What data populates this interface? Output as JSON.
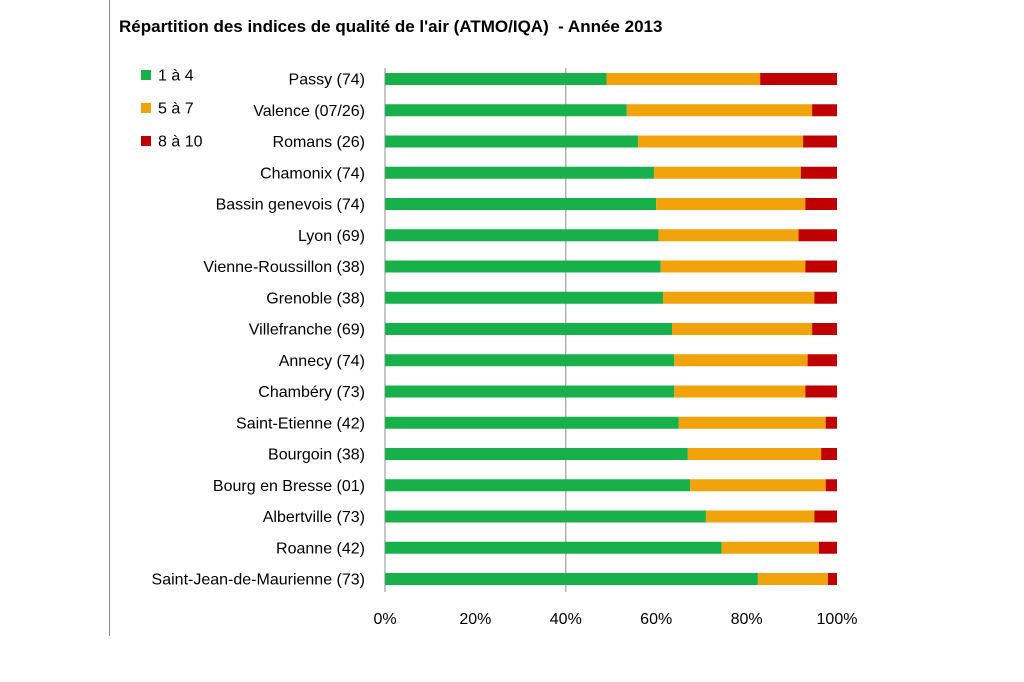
{
  "chart_data": {
    "type": "bar",
    "orientation": "horizontal",
    "stacked": "percent",
    "title": "Répartition des indices de qualité de l'air (ATMO/IQA)  - Année 2013",
    "categories": [
      "Passy (74)",
      "Valence (07/26)",
      "Romans (26)",
      "Chamonix (74)",
      "Bassin genevois (74)",
      "Lyon (69)",
      "Vienne-Roussillon (38)",
      "Grenoble (38)",
      "Villefranche (69)",
      "Annecy (74)",
      "Chambéry (73)",
      "Saint-Etienne (42)",
      "Bourgoin (38)",
      "Bourg en Bresse (01)",
      "Albertville (73)",
      "Roanne (42)",
      "Saint-Jean-de-Maurienne (73)"
    ],
    "series": [
      {
        "name": "1 à 4",
        "color": "#18b04b",
        "values": [
          49,
          53.5,
          56,
          59.5,
          60,
          60.5,
          61,
          61.5,
          63.5,
          64,
          64,
          65,
          67,
          67.5,
          71,
          74.5,
          82.5
        ]
      },
      {
        "name": "5 à 7",
        "color": "#f0a30a",
        "values": [
          34,
          41,
          36.5,
          32.5,
          33,
          31,
          32,
          33.5,
          31,
          29.5,
          29,
          32.5,
          29.5,
          30,
          24,
          21.5,
          15.5
        ]
      },
      {
        "name": "8 à 10",
        "color": "#c00000",
        "values": [
          17,
          5.5,
          7.5,
          8,
          7,
          8.5,
          7,
          5,
          5.5,
          6.5,
          7,
          2.5,
          3.5,
          2.5,
          5,
          4,
          2
        ]
      }
    ],
    "x_ticks": [
      "0%",
      "20%",
      "40%",
      "60%",
      "80%",
      "100%"
    ],
    "xlim": [
      0,
      100
    ],
    "grid": "vertical gridline at 40%",
    "legend_position": "top-left"
  }
}
